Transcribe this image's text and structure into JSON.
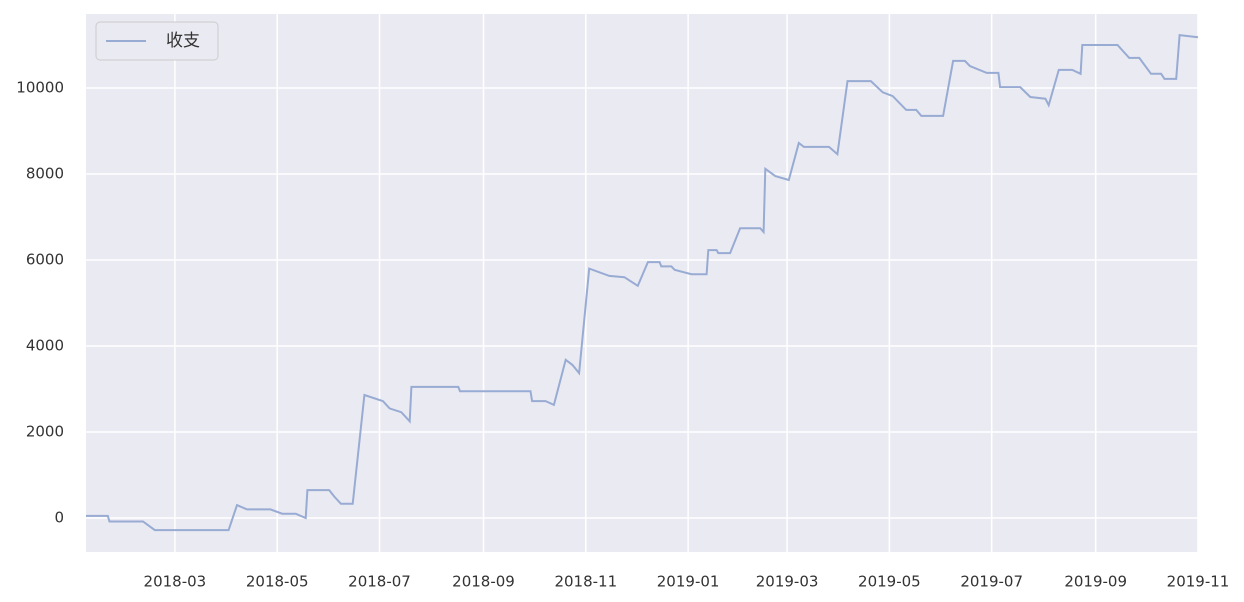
{
  "chart_data": {
    "type": "line",
    "x": [
      "2018-01-07",
      "2018-01-20",
      "2018-01-21",
      "2018-02-10",
      "2018-02-17",
      "2018-04-02",
      "2018-04-07",
      "2018-04-13",
      "2018-04-27",
      "2018-05-04",
      "2018-05-12",
      "2018-05-18",
      "2018-05-19",
      "2018-06-01",
      "2018-06-04",
      "2018-06-08",
      "2018-06-15",
      "2018-06-22",
      "2018-07-03",
      "2018-07-07",
      "2018-07-14",
      "2018-07-19",
      "2018-07-20",
      "2018-08-17",
      "2018-08-18",
      "2018-09-29",
      "2018-09-30",
      "2018-10-08",
      "2018-10-13",
      "2018-10-20",
      "2018-10-24",
      "2018-10-28",
      "2018-11-03",
      "2018-11-15",
      "2018-11-24",
      "2018-12-02",
      "2018-12-08",
      "2018-12-15",
      "2018-12-16",
      "2018-12-22",
      "2018-12-24",
      "2019-01-03",
      "2019-01-12",
      "2019-01-13",
      "2019-01-18",
      "2019-01-19",
      "2019-01-26",
      "2019-02-01",
      "2019-02-13",
      "2019-02-15",
      "2019-02-16",
      "2019-02-22",
      "2019-03-02",
      "2019-03-08",
      "2019-03-11",
      "2019-03-26",
      "2019-03-31",
      "2019-04-06",
      "2019-04-20",
      "2019-04-27",
      "2019-05-03",
      "2019-05-11",
      "2019-05-17",
      "2019-05-20",
      "2019-06-02",
      "2019-06-08",
      "2019-06-15",
      "2019-06-18",
      "2019-06-28",
      "2019-07-05",
      "2019-07-06",
      "2019-07-18",
      "2019-07-24",
      "2019-08-02",
      "2019-08-04",
      "2019-08-10",
      "2019-08-18",
      "2019-08-23",
      "2019-08-24",
      "2019-09-14",
      "2019-09-21",
      "2019-09-27",
      "2019-10-04",
      "2019-10-10",
      "2019-10-12",
      "2019-10-19",
      "2019-10-21",
      "2019-11-01"
    ],
    "series": [
      {
        "name": "收支",
        "color": "#98abd3",
        "values": [
          50,
          50,
          -80,
          -80,
          -280,
          -280,
          300,
          200,
          200,
          100,
          100,
          0,
          650,
          650,
          500,
          330,
          330,
          2860,
          2720,
          2550,
          2460,
          2250,
          3050,
          3050,
          2950,
          2950,
          2720,
          2720,
          2630,
          3680,
          3560,
          3370,
          5800,
          5630,
          5600,
          5400,
          5950,
          5950,
          5850,
          5850,
          5770,
          5670,
          5670,
          6230,
          6230,
          6160,
          6160,
          6740,
          6740,
          6650,
          8120,
          7950,
          7860,
          8720,
          8630,
          8630,
          8460,
          10160,
          10160,
          9900,
          9810,
          9490,
          9490,
          9350,
          9350,
          10630,
          10630,
          10510,
          10350,
          10350,
          10020,
          10020,
          9790,
          9750,
          9600,
          10420,
          10420,
          10330,
          11000,
          11000,
          10700,
          10700,
          10330,
          10330,
          10210,
          10210,
          11230,
          11180
        ]
      }
    ],
    "xlim": [
      "2018-01-07",
      "2019-11-01"
    ],
    "xticks": [
      {
        "value": "2018-03-01",
        "label": "2018-03"
      },
      {
        "value": "2018-05-01",
        "label": "2018-05"
      },
      {
        "value": "2018-07-01",
        "label": "2018-07"
      },
      {
        "value": "2018-09-01",
        "label": "2018-09"
      },
      {
        "value": "2018-11-01",
        "label": "2018-11"
      },
      {
        "value": "2019-01-01",
        "label": "2019-01"
      },
      {
        "value": "2019-03-01",
        "label": "2019-03"
      },
      {
        "value": "2019-05-01",
        "label": "2019-05"
      },
      {
        "value": "2019-07-01",
        "label": "2019-07"
      },
      {
        "value": "2019-09-01",
        "label": "2019-09"
      },
      {
        "value": "2019-11-01",
        "label": "2019-11"
      }
    ],
    "ylim": [
      -790,
      11720
    ],
    "yticks": [
      0,
      2000,
      4000,
      6000,
      8000,
      10000
    ],
    "grid": true,
    "legend": "upper-left"
  }
}
